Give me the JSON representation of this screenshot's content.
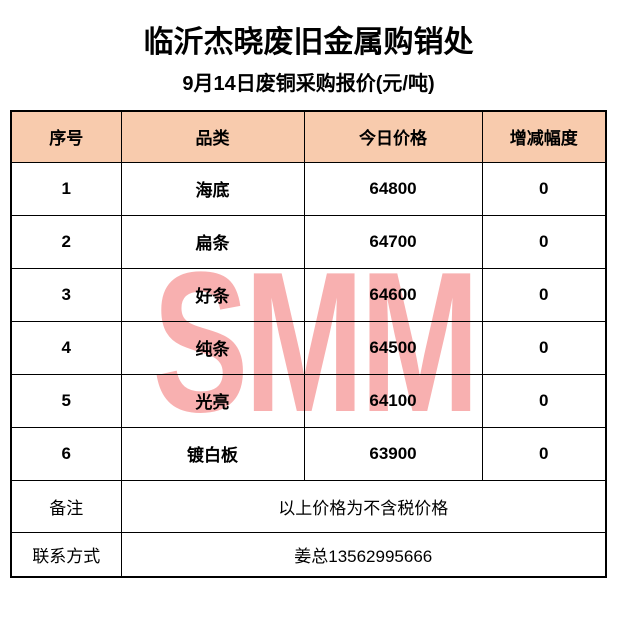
{
  "page": {
    "title": "临沂杰晓废旧金属购销处",
    "subtitle": "9月14日废铜采购报价(元/吨)",
    "watermark": "SMM"
  },
  "table": {
    "headers": [
      "序号",
      "品类",
      "今日价格",
      "增减幅度"
    ],
    "rows": [
      {
        "no": "1",
        "category": "海底",
        "price": "64800",
        "change": "0"
      },
      {
        "no": "2",
        "category": "扁条",
        "price": "64700",
        "change": "0"
      },
      {
        "no": "3",
        "category": "好条",
        "price": "64600",
        "change": "0"
      },
      {
        "no": "4",
        "category": "纯条",
        "price": "64500",
        "change": "0"
      },
      {
        "no": "5",
        "category": "光亮",
        "price": "64100",
        "change": "0"
      },
      {
        "no": "6",
        "category": "镀白板",
        "price": "63900",
        "change": "0"
      }
    ],
    "note_label": "备注",
    "note_value": "以上价格为不含税价格",
    "contact_label": "联系方式",
    "contact_value": "姜总13562995666"
  },
  "colors": {
    "header_bg": "#F8CBAD",
    "watermark_pink": "#F8B0B0",
    "border": "#000000",
    "text": "#000000"
  }
}
